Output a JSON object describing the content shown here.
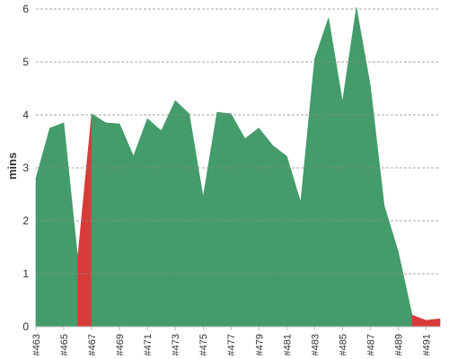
{
  "chart_data": {
    "type": "area",
    "ylabel": "mins",
    "xlabel": "",
    "title": "",
    "ylim": [
      0,
      6
    ],
    "yticks": [
      0,
      1,
      2,
      3,
      4,
      5,
      6
    ],
    "grid": "horizontal-dashed",
    "x": [
      "#463",
      "#464",
      "#465",
      "#466",
      "#467",
      "#468",
      "#469",
      "#470",
      "#471",
      "#472",
      "#473",
      "#474",
      "#475",
      "#476",
      "#477",
      "#478",
      "#479",
      "#480",
      "#481",
      "#482",
      "#483",
      "#484",
      "#485",
      "#486",
      "#487",
      "#488",
      "#489",
      "#490",
      "#491",
      "#492"
    ],
    "x_tick_labels": [
      "#463",
      "#465",
      "#467",
      "#469",
      "#471",
      "#473",
      "#475",
      "#477",
      "#479",
      "#481",
      "#483",
      "#485",
      "#487",
      "#489",
      "#491"
    ],
    "values": [
      2.8,
      3.75,
      3.85,
      1.3,
      4.02,
      3.85,
      3.83,
      3.22,
      3.93,
      3.7,
      4.27,
      4.02,
      2.45,
      4.05,
      4.02,
      3.55,
      3.75,
      3.42,
      3.22,
      2.35,
      5.05,
      5.83,
      4.25,
      6.1,
      4.55,
      2.28,
      1.42,
      0.22,
      0.12,
      0.15
    ],
    "status": [
      "ok",
      "ok",
      "ok",
      "fail",
      "ok",
      "ok",
      "ok",
      "ok",
      "ok",
      "ok",
      "ok",
      "ok",
      "ok",
      "ok",
      "ok",
      "ok",
      "ok",
      "ok",
      "ok",
      "ok",
      "ok",
      "ok",
      "ok",
      "ok",
      "ok",
      "ok",
      "ok",
      "fail",
      "fail",
      "fail"
    ],
    "colors": {
      "ok": "#439c6a",
      "fail": "#d83a3a",
      "grid": "#8f8f8f",
      "axis": "#bbbbbb"
    }
  }
}
